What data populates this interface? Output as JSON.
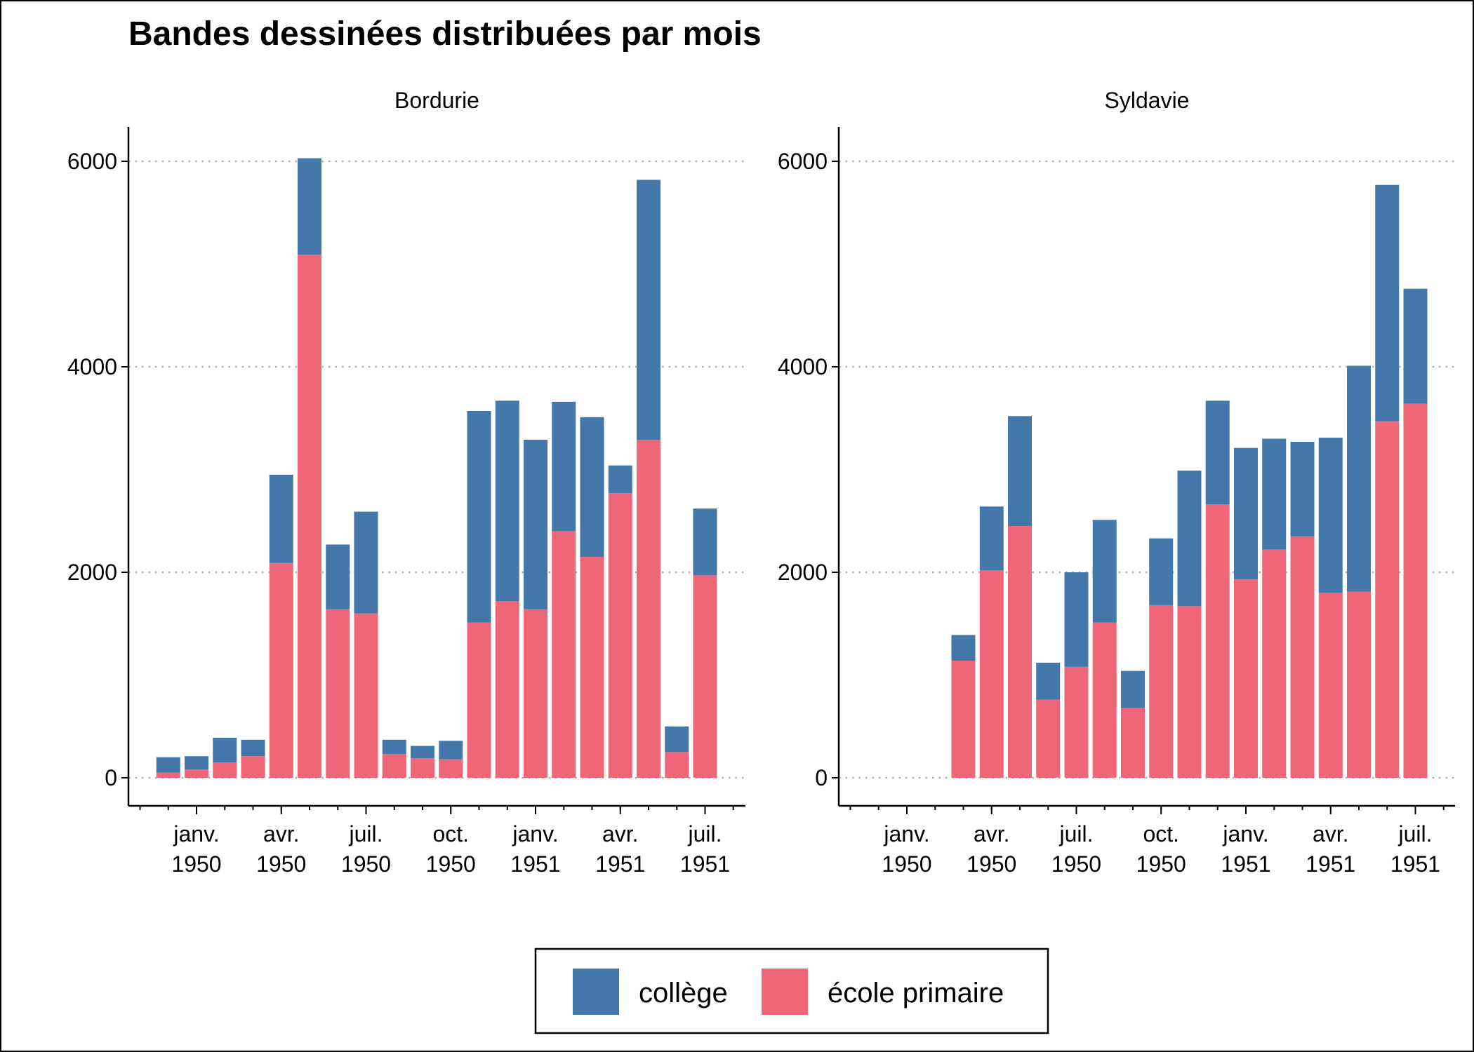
{
  "chart_data": {
    "type": "bar",
    "stacked": true,
    "title": "Bandes dessinées distribuées par mois",
    "xlabel": "",
    "ylabel": "",
    "ylim": [
      0,
      6300
    ],
    "yticks": [
      0,
      2000,
      4000,
      6000
    ],
    "grid": "horizontal dotted",
    "legend_position": "bottom",
    "legend": [
      {
        "name": "collège",
        "color": "#4477AA"
      },
      {
        "name": "école primaire",
        "color": "#EE6677"
      }
    ],
    "xtick_labels": [
      {
        "month": "1950-01",
        "line1": "janv.",
        "line2": "1950"
      },
      {
        "month": "1950-04",
        "line1": "avr.",
        "line2": "1950"
      },
      {
        "month": "1950-07",
        "line1": "juil.",
        "line2": "1950"
      },
      {
        "month": "1950-10",
        "line1": "oct.",
        "line2": "1950"
      },
      {
        "month": "1951-01",
        "line1": "janv.",
        "line2": "1951"
      },
      {
        "month": "1951-04",
        "line1": "avr.",
        "line2": "1951"
      },
      {
        "month": "1951-07",
        "line1": "juil.",
        "line2": "1951"
      }
    ],
    "panels": [
      {
        "name": "Bordurie",
        "months": [
          "1949-12",
          "1950-01",
          "1950-02",
          "1950-03",
          "1950-04",
          "1950-05",
          "1950-06",
          "1950-07",
          "1950-08",
          "1950-09",
          "1950-10",
          "1950-11",
          "1950-12",
          "1951-01",
          "1951-02",
          "1951-03",
          "1951-04",
          "1951-05",
          "1951-06",
          "1951-07"
        ],
        "series": [
          {
            "name": "école primaire",
            "values": [
              50,
              80,
              150,
              210,
              2090,
              5090,
              1640,
              1600,
              230,
              190,
              180,
              1510,
              1720,
              1640,
              2400,
              2150,
              2770,
              3290,
              250,
              1970
            ]
          },
          {
            "name": "collège",
            "values": [
              150,
              130,
              240,
              160,
              860,
              940,
              630,
              990,
              140,
              120,
              180,
              2060,
              1950,
              1650,
              1260,
              1360,
              270,
              2530,
              250,
              650
            ]
          }
        ]
      },
      {
        "name": "Syldavie",
        "months": [
          "1950-03",
          "1950-04",
          "1950-05",
          "1950-06",
          "1950-07",
          "1950-08",
          "1950-09",
          "1950-10",
          "1950-11",
          "1950-12",
          "1951-01",
          "1951-02",
          "1951-03",
          "1951-04",
          "1951-05",
          "1951-06",
          "1951-07"
        ],
        "series": [
          {
            "name": "école primaire",
            "values": [
              1140,
              2020,
              2450,
              760,
              1080,
              1510,
              680,
              1680,
              1670,
              2660,
              1930,
              2220,
              2350,
              1800,
              1810,
              3470,
              3640
            ]
          },
          {
            "name": "collège",
            "values": [
              250,
              620,
              1070,
              360,
              920,
              1000,
              360,
              650,
              1320,
              1010,
              1280,
              1080,
              920,
              1510,
              2200,
              2300,
              1120
            ]
          }
        ]
      }
    ]
  }
}
